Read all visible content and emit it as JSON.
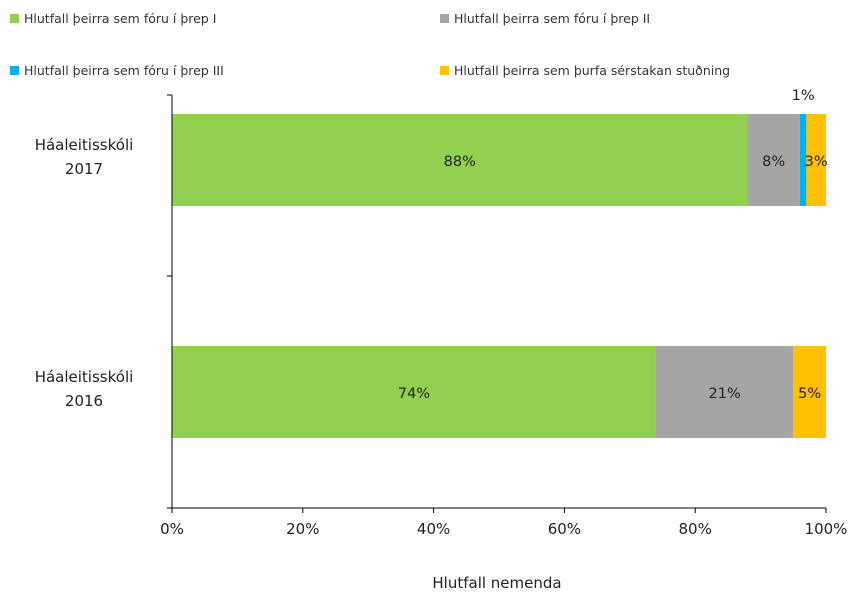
{
  "chart_data": {
    "type": "bar",
    "orientation": "horizontal",
    "stacked": true,
    "categories": [
      [
        "Háaleitisskóli",
        "2017"
      ],
      [
        "Háaleitisskóli",
        "2016"
      ]
    ],
    "series": [
      {
        "name": "Hlutfall þeirra sem fóru í þrep I",
        "color": "#92d050",
        "values": [
          88,
          74
        ],
        "labels": [
          "88%",
          "74%"
        ]
      },
      {
        "name": "Hlutfall þeirra sem fóru í þrep II",
        "color": "#a5a5a5",
        "values": [
          8,
          21
        ],
        "labels": [
          "8%",
          "21%"
        ]
      },
      {
        "name": "Hlutfall þeirra sem fóru í þrep III",
        "color": "#00b0f0",
        "values": [
          1,
          0
        ],
        "labels": [
          "1%",
          ""
        ]
      },
      {
        "name": "Hlutfall þeirra sem þurfa sérstakan stuðning",
        "color": "#ffc000",
        "values": [
          3,
          5
        ],
        "labels": [
          "3%",
          "5%"
        ]
      }
    ],
    "xlim": [
      0,
      100
    ],
    "xticks": [
      "0%",
      "20%",
      "40%",
      "60%",
      "80%",
      "100%"
    ],
    "xlabel": "Hlutfall nemenda",
    "legend": "top",
    "grid": false
  }
}
